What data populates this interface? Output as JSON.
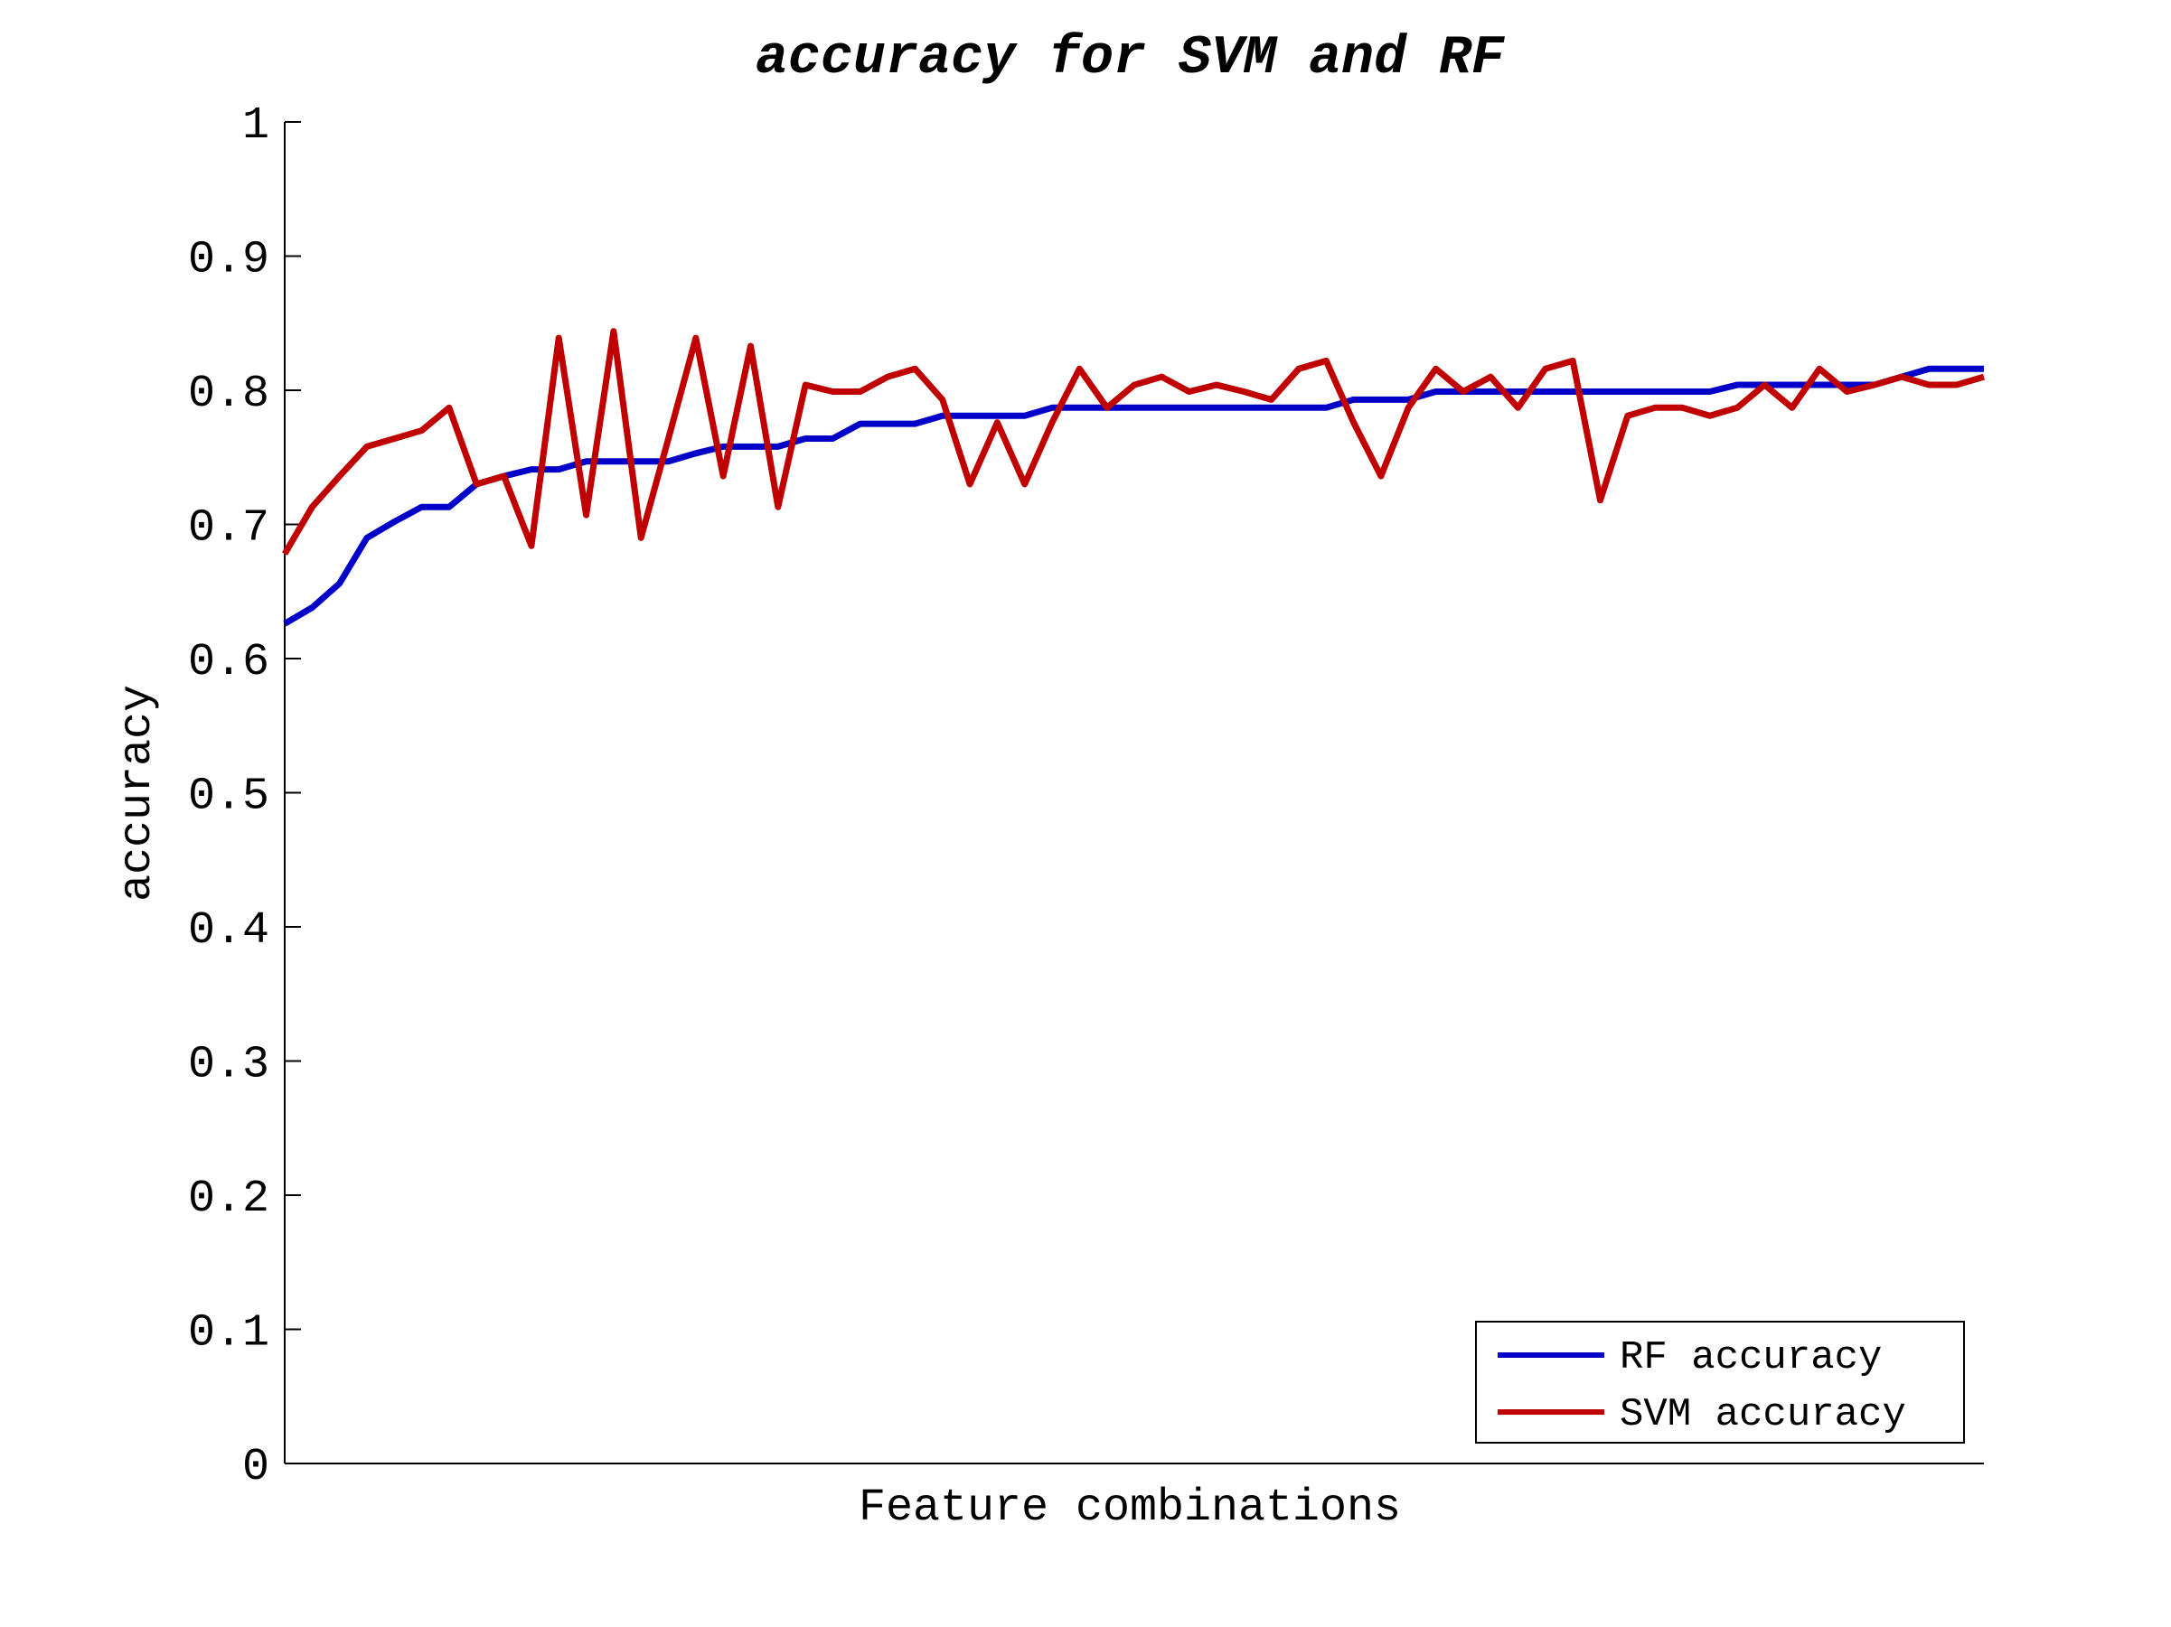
{
  "chart_data": {
    "type": "line",
    "title": "accuracy for SVM and RF",
    "xlabel": "Feature combinations",
    "ylabel": "accuracy",
    "xlim": [
      1,
      63
    ],
    "ylim": [
      0,
      1
    ],
    "yticks": [
      "0",
      "0.1",
      "0.2",
      "0.3",
      "0.4",
      "0.5",
      "0.6",
      "0.7",
      "0.8",
      "0.9",
      "1"
    ],
    "grid": false,
    "legend_position": "bottom-right",
    "x": [
      1,
      2,
      3,
      4,
      5,
      6,
      7,
      8,
      9,
      10,
      11,
      12,
      13,
      14,
      15,
      16,
      17,
      18,
      19,
      20,
      21,
      22,
      23,
      24,
      25,
      26,
      27,
      28,
      29,
      30,
      31,
      32,
      33,
      34,
      35,
      36,
      37,
      38,
      39,
      40,
      41,
      42,
      43,
      44,
      45,
      46,
      47,
      48,
      49,
      50,
      51,
      52,
      53,
      54,
      55,
      56,
      57,
      58,
      59,
      60,
      61,
      62,
      63
    ],
    "series": [
      {
        "name": "RF accuracy",
        "color": "#0000c8",
        "values": [
          0.626,
          0.638,
          0.656,
          0.69,
          0.702,
          0.713,
          0.713,
          0.73,
          0.736,
          0.741,
          0.741,
          0.747,
          0.747,
          0.747,
          0.747,
          0.753,
          0.758,
          0.758,
          0.758,
          0.764,
          0.764,
          0.775,
          0.775,
          0.775,
          0.781,
          0.781,
          0.781,
          0.781,
          0.787,
          0.787,
          0.787,
          0.787,
          0.787,
          0.787,
          0.787,
          0.787,
          0.787,
          0.787,
          0.787,
          0.793,
          0.793,
          0.793,
          0.799,
          0.799,
          0.799,
          0.799,
          0.799,
          0.799,
          0.799,
          0.799,
          0.799,
          0.799,
          0.799,
          0.804,
          0.804,
          0.804,
          0.804,
          0.804,
          0.804,
          0.81,
          0.816,
          0.816,
          0.816
        ]
      },
      {
        "name": "SVM accuracy",
        "color": "#c00000",
        "values": [
          0.678,
          0.713,
          0.736,
          0.758,
          0.764,
          0.77,
          0.787,
          0.73,
          0.736,
          0.684,
          0.839,
          0.707,
          0.844,
          0.69,
          0.764,
          0.839,
          0.736,
          0.833,
          0.713,
          0.804,
          0.799,
          0.799,
          0.81,
          0.816,
          0.793,
          0.73,
          0.776,
          0.73,
          0.776,
          0.816,
          0.787,
          0.804,
          0.81,
          0.799,
          0.804,
          0.799,
          0.793,
          0.816,
          0.822,
          0.776,
          0.736,
          0.787,
          0.816,
          0.799,
          0.81,
          0.787,
          0.816,
          0.822,
          0.718,
          0.781,
          0.787,
          0.787,
          0.781,
          0.787,
          0.804,
          0.787,
          0.816,
          0.799,
          0.804,
          0.81,
          0.804,
          0.804,
          0.81
        ]
      }
    ]
  }
}
